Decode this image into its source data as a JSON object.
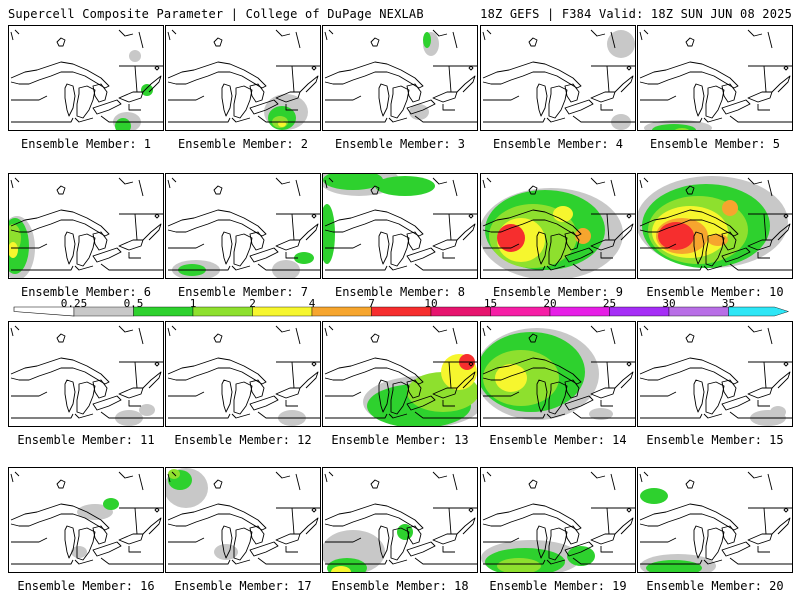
{
  "header": {
    "title_left": "Supercell Composite Parameter | College of DuPage NEXLAB",
    "title_right": "18Z GEFS | F384 Valid: 18Z SUN JUN 08 2025"
  },
  "legend": {
    "items": [
      {
        "label": "0.25",
        "color": "#c8c8c8"
      },
      {
        "label": "0.5",
        "color": "#2ed12e"
      },
      {
        "label": "1",
        "color": "#8ee02e"
      },
      {
        "label": "2",
        "color": "#f6f62e"
      },
      {
        "label": "4",
        "color": "#f6a52e"
      },
      {
        "label": "7",
        "color": "#f62e2e"
      },
      {
        "label": "10",
        "color": "#e6146e"
      },
      {
        "label": "15",
        "color": "#f61ea6"
      },
      {
        "label": "20",
        "color": "#e61ee6"
      },
      {
        "label": "25",
        "color": "#a52ef6"
      },
      {
        "label": "30",
        "color": "#b86ee6"
      },
      {
        "label": "35",
        "color": "#2ee6f6"
      }
    ]
  },
  "members": [
    {
      "label": "Ensemble Member: 1"
    },
    {
      "label": "Ensemble Member: 2"
    },
    {
      "label": "Ensemble Member: 3"
    },
    {
      "label": "Ensemble Member: 4"
    },
    {
      "label": "Ensemble Member: 5"
    },
    {
      "label": "Ensemble Member: 6"
    },
    {
      "label": "Ensemble Member: 7"
    },
    {
      "label": "Ensemble Member: 8"
    },
    {
      "label": "Ensemble Member: 9"
    },
    {
      "label": "Ensemble Member: 10"
    },
    {
      "label": "Ensemble Member: 11"
    },
    {
      "label": "Ensemble Member: 12"
    },
    {
      "label": "Ensemble Member: 13"
    },
    {
      "label": "Ensemble Member: 14"
    },
    {
      "label": "Ensemble Member: 15"
    },
    {
      "label": "Ensemble Member: 16"
    },
    {
      "label": "Ensemble Member: 17"
    },
    {
      "label": "Ensemble Member: 18"
    },
    {
      "label": "Ensemble Member: 19"
    },
    {
      "label": "Ensemble Member: 20"
    }
  ]
}
